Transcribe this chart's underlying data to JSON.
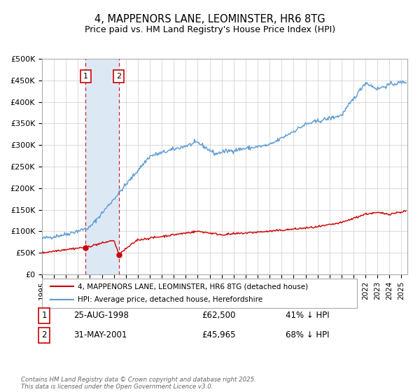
{
  "title": "4, MAPPENORS LANE, LEOMINSTER, HR6 8TG",
  "subtitle": "Price paid vs. HM Land Registry's House Price Index (HPI)",
  "legend_line1": "4, MAPPENORS LANE, LEOMINSTER, HR6 8TG (detached house)",
  "legend_line2": "HPI: Average price, detached house, Herefordshire",
  "footer": "Contains HM Land Registry data © Crown copyright and database right 2025.\nThis data is licensed under the Open Government Licence v3.0.",
  "sale1_date": "25-AUG-1998",
  "sale1_price": "£62,500",
  "sale1_hpi": "41% ↓ HPI",
  "sale1_label": "1",
  "sale1_year": 1998.65,
  "sale1_value": 62500,
  "sale2_date": "31-MAY-2001",
  "sale2_price": "£45,965",
  "sale2_hpi": "68% ↓ HPI",
  "sale2_label": "2",
  "sale2_year": 2001.41,
  "sale2_value": 45965,
  "hpi_color": "#5b9bd5",
  "price_color": "#cc0000",
  "shade_color": "#dce9f5",
  "vline_color": "#cc0000",
  "background_color": "#ffffff",
  "grid_color": "#cccccc",
  "ylim_min": 0,
  "ylim_max": 500000,
  "xlim_min": 1995,
  "xlim_max": 2025.5,
  "ytick_values": [
    0,
    50000,
    100000,
    150000,
    200000,
    250000,
    300000,
    350000,
    400000,
    450000,
    500000
  ],
  "ytick_labels": [
    "£0",
    "£50K",
    "£100K",
    "£150K",
    "£200K",
    "£250K",
    "£300K",
    "£350K",
    "£400K",
    "£450K",
    "£500K"
  ],
  "xtick_values": [
    1995,
    1996,
    1997,
    1998,
    1999,
    2000,
    2001,
    2002,
    2003,
    2004,
    2005,
    2006,
    2007,
    2008,
    2009,
    2010,
    2011,
    2012,
    2013,
    2014,
    2015,
    2016,
    2017,
    2018,
    2019,
    2020,
    2021,
    2022,
    2023,
    2024,
    2025
  ]
}
